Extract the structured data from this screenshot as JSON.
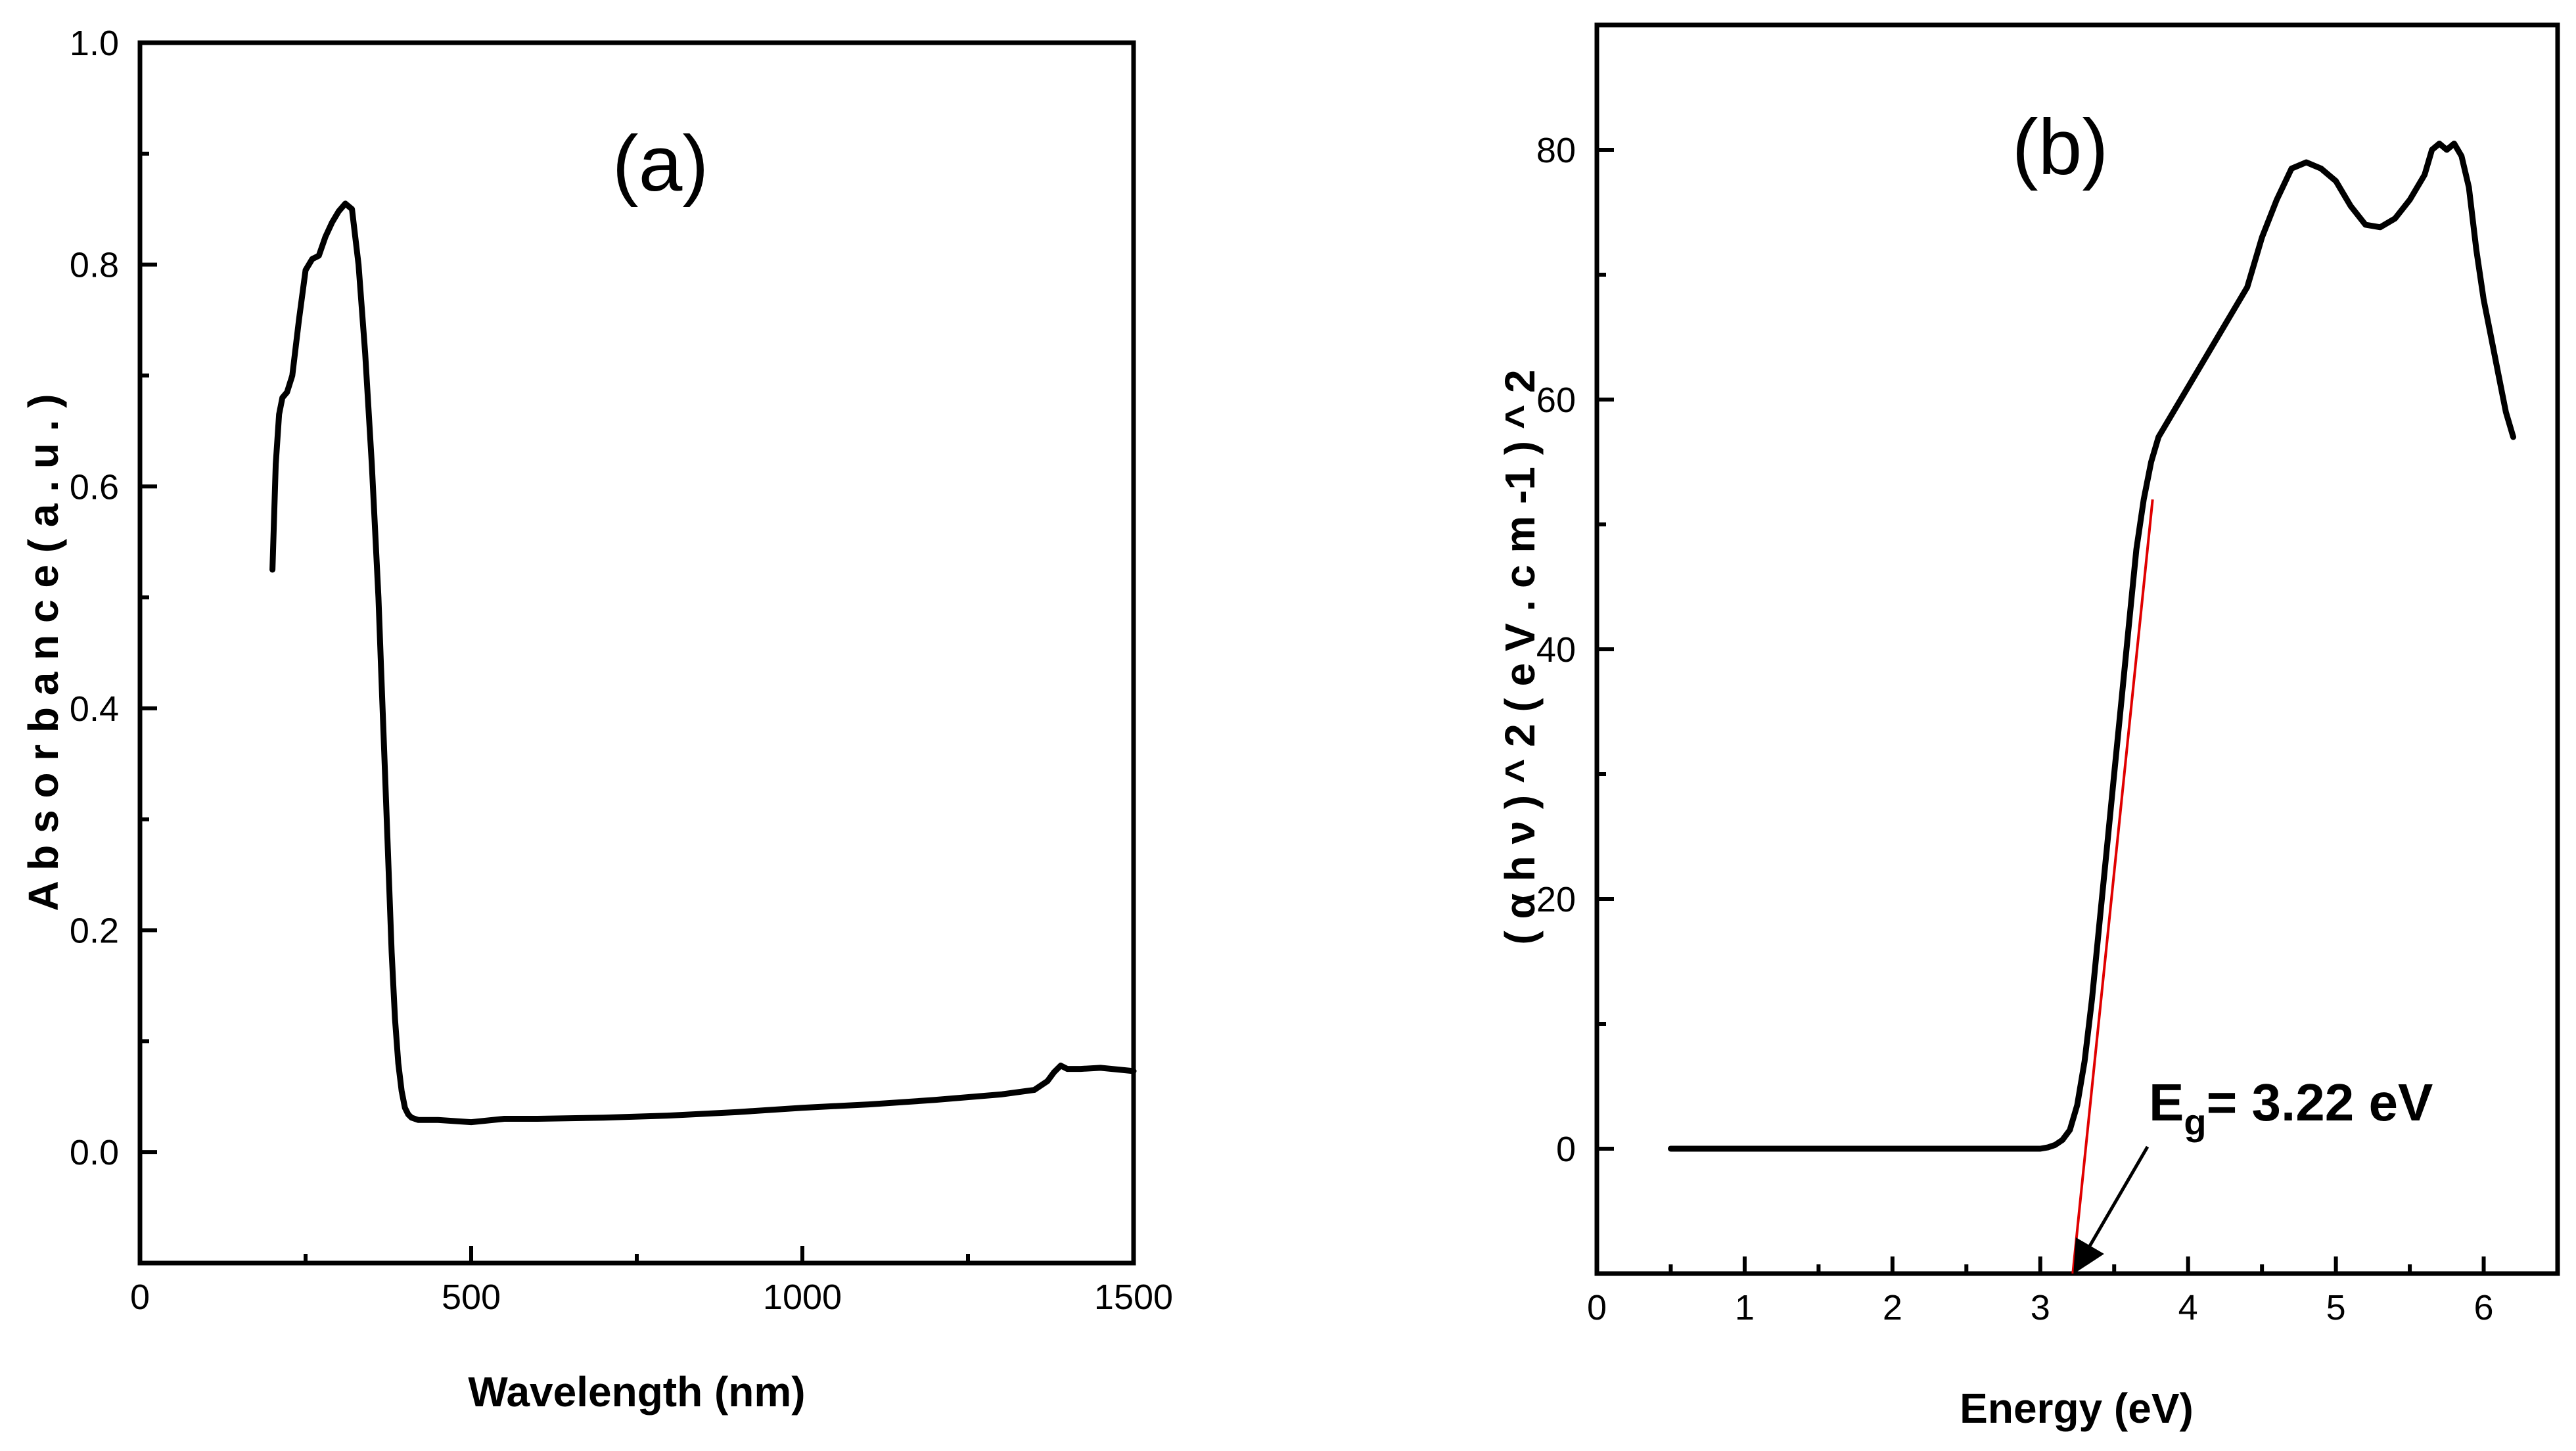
{
  "chart_data": [
    {
      "type": "line",
      "panel_label": "(a)",
      "xlabel": "Wavelength (nm)",
      "ylabel": "A b s o r b a n c e   ( a . u . )",
      "xlim": [
        0,
        1500
      ],
      "ylim": [
        -0.1,
        1.0
      ],
      "xticks": [
        0,
        500,
        1000,
        1500
      ],
      "xtick_labels": [
        "0",
        "500",
        "1000",
        "1500"
      ],
      "yticks": [
        0.0,
        0.2,
        0.4,
        0.6,
        0.8,
        1.0
      ],
      "ytick_labels": [
        "0.0",
        "0.2",
        "0.4",
        "0.6",
        "0.8",
        "1.0"
      ],
      "grid": false,
      "series": [
        {
          "color": "#000000",
          "x": [
            200,
            205,
            210,
            215,
            222,
            230,
            240,
            250,
            260,
            270,
            280,
            290,
            300,
            310,
            320,
            330,
            340,
            350,
            360,
            365,
            370,
            375,
            380,
            385,
            390,
            395,
            400,
            405,
            410,
            415,
            420,
            430,
            450,
            500,
            550,
            600,
            700,
            800,
            900,
            1000,
            1100,
            1200,
            1300,
            1350,
            1370,
            1380,
            1390,
            1400,
            1420,
            1450,
            1500
          ],
          "y": [
            0.525,
            0.62,
            0.665,
            0.68,
            0.685,
            0.7,
            0.75,
            0.795,
            0.805,
            0.808,
            0.825,
            0.838,
            0.848,
            0.855,
            0.85,
            0.8,
            0.72,
            0.62,
            0.5,
            0.42,
            0.34,
            0.26,
            0.18,
            0.12,
            0.08,
            0.055,
            0.04,
            0.034,
            0.031,
            0.03,
            0.029,
            0.029,
            0.029,
            0.027,
            0.03,
            0.03,
            0.031,
            0.033,
            0.036,
            0.04,
            0.043,
            0.047,
            0.052,
            0.056,
            0.064,
            0.072,
            0.078,
            0.075,
            0.075,
            0.076,
            0.073
          ]
        }
      ]
    },
    {
      "type": "line",
      "panel_label": "(b)",
      "xlabel": "Energy (eV)",
      "ylabel": "( α h ν ) ^ 2   ( e V . c m  -1 ) ^ 2",
      "xlim": [
        0,
        6.5
      ],
      "ylim": [
        -10,
        90
      ],
      "xticks": [
        0,
        1,
        2,
        3,
        4,
        5,
        6
      ],
      "xtick_labels": [
        "0",
        "1",
        "2",
        "3",
        "4",
        "5",
        "6"
      ],
      "yticks": [
        0,
        20,
        40,
        60,
        80
      ],
      "ytick_labels": [
        "0",
        "20",
        "40",
        "60",
        "80"
      ],
      "grid": false,
      "series": [
        {
          "color": "#000000",
          "x": [
            0.5,
            1.0,
            2.0,
            2.5,
            3.0,
            3.05,
            3.1,
            3.15,
            3.2,
            3.25,
            3.3,
            3.35,
            3.4,
            3.45,
            3.5,
            3.55,
            3.6,
            3.65,
            3.7,
            3.75,
            3.8,
            3.9,
            4.0,
            4.1,
            4.2,
            4.3,
            4.4,
            4.5,
            4.6,
            4.7,
            4.8,
            4.9,
            5.0,
            5.1,
            5.2,
            5.3,
            5.4,
            5.5,
            5.6,
            5.65,
            5.7,
            5.75,
            5.8,
            5.85,
            5.9,
            5.95,
            6.0,
            6.05,
            6.1,
            6.15,
            6.2
          ],
          "y": [
            0,
            0,
            0,
            0,
            0,
            0.1,
            0.3,
            0.7,
            1.5,
            3.5,
            7,
            12,
            18,
            24,
            30,
            36,
            42,
            48,
            52,
            55,
            57,
            59,
            61,
            63,
            65,
            67,
            69,
            73,
            76,
            78.5,
            79,
            78.5,
            77.5,
            75.5,
            74,
            73.8,
            74.5,
            76,
            78,
            80,
            80.5,
            80,
            80.5,
            79.5,
            77,
            72,
            68,
            65,
            62,
            59,
            57
          ]
        }
      ],
      "fit_line": {
        "color": "#e00000",
        "x": [
          3.22,
          3.76
        ],
        "y": [
          -10,
          52
        ]
      },
      "annotation": {
        "label_main": "E",
        "label_sub": "g",
        "label_rest": "= 3.22 eV",
        "point": [
          3.22,
          -10
        ]
      }
    }
  ]
}
